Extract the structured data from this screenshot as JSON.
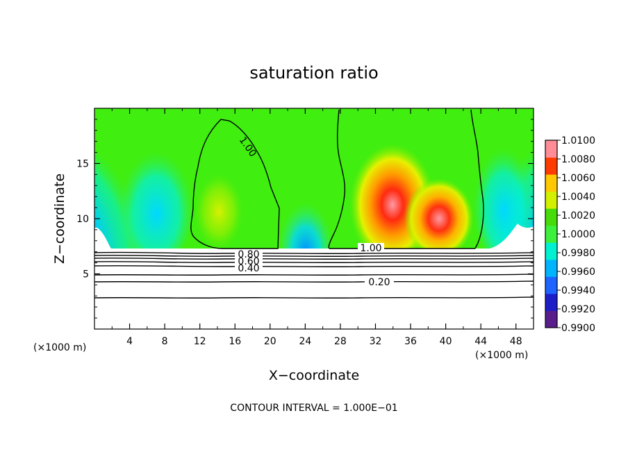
{
  "chart_data": {
    "type": "contour",
    "title": "saturation ratio",
    "xlabel": "X−coordinate",
    "ylabel": "Z−coordinate",
    "x_unit_left": "(×1000 m)",
    "x_unit_right": "(×1000 m)",
    "xlim": [
      0,
      50
    ],
    "ylim": [
      0,
      20
    ],
    "x_ticks": [
      4,
      8,
      12,
      16,
      20,
      24,
      28,
      32,
      36,
      40,
      44,
      48
    ],
    "x_tick_labels": [
      "4",
      "8",
      "12",
      "16",
      "20",
      "24",
      "28",
      "32",
      "36",
      "40",
      "44",
      "48"
    ],
    "y_ticks": [
      5,
      10,
      15
    ],
    "y_tick_labels": [
      "5",
      "10",
      "15"
    ],
    "colorbar": {
      "min": 0.99,
      "max": 1.01,
      "tick_labels": [
        "1.0100",
        "1.0080",
        "1.0060",
        "1.0040",
        "1.0020",
        "1.0000",
        "0.9980",
        "0.9960",
        "0.9940",
        "0.9920",
        "0.9900"
      ],
      "colors": [
        "#5a1e8c",
        "#1e1ec8",
        "#1e64ff",
        "#00b4ff",
        "#00f0d2",
        "#3cf03c",
        "#46dc0a",
        "#d2f000",
        "#ffc800",
        "#ff3c00",
        "#ff8c96"
      ]
    },
    "contour_interval_text": "CONTOUR INTERVAL = 1.000E−01",
    "contour_labels": [
      "1.00",
      "1.00",
      "0.80",
      "0.60",
      "0.40",
      "0.20"
    ],
    "contour_levels": [
      0.2,
      0.4,
      0.6,
      0.8,
      1.0
    ]
  }
}
